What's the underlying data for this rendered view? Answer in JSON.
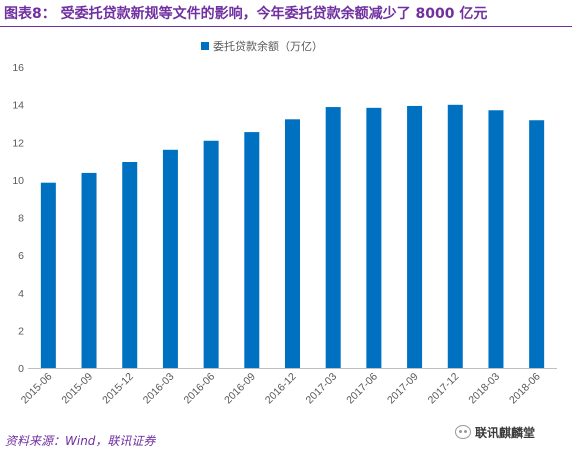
{
  "header": {
    "title": "图表8： 受委托贷款新规等文件的影响，今年委托贷款余额减少了 8000 亿元"
  },
  "chart_data": {
    "type": "bar",
    "title": "",
    "xlabel": "",
    "ylabel": "",
    "categories": [
      "2015-06",
      "2015-09",
      "2015-12",
      "2016-03",
      "2016-06",
      "2016-09",
      "2016-12",
      "2017-03",
      "2017-06",
      "2017-09",
      "2017-12",
      "2018-03",
      "2018-06"
    ],
    "series": [
      {
        "name": "委托贷款余额（万亿）",
        "color": "#0070C0",
        "values": [
          9.85,
          10.37,
          10.95,
          11.6,
          12.08,
          12.54,
          13.22,
          13.87,
          13.83,
          13.93,
          13.99,
          13.7,
          13.17
        ]
      }
    ],
    "ylim": [
      0,
      16
    ],
    "yticks": [
      0,
      2,
      4,
      6,
      8,
      10,
      12,
      14,
      16
    ],
    "grid": false,
    "legend": "top-center"
  },
  "footer": {
    "source": "资料来源：Wind，联讯证券"
  },
  "watermark": {
    "icon": "wechat-icon",
    "text": "联讯麒麟堂"
  },
  "colors": {
    "accent": "#7030A0",
    "bar": "#0070C0",
    "axis": "#BFBFBF",
    "label": "#595959"
  }
}
